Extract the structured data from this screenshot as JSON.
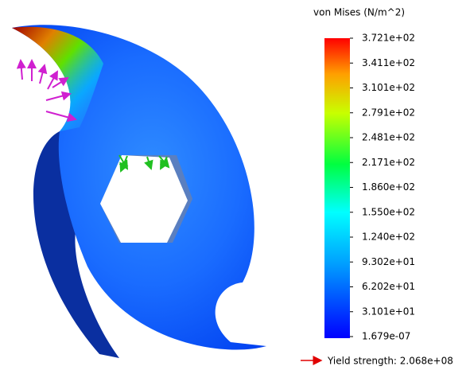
{
  "legend": {
    "title": "von Mises (N/m^2)",
    "labels": [
      "3.721e+02",
      "3.411e+02",
      "3.101e+02",
      "2.791e+02",
      "2.481e+02",
      "2.171e+02",
      "1.860e+02",
      "1.550e+02",
      "1.240e+02",
      "9.302e+01",
      "6.202e+01",
      "3.101e+01",
      "1.679e-07"
    ]
  },
  "yield": {
    "label": "Yield strength: 2.068e+08"
  }
}
